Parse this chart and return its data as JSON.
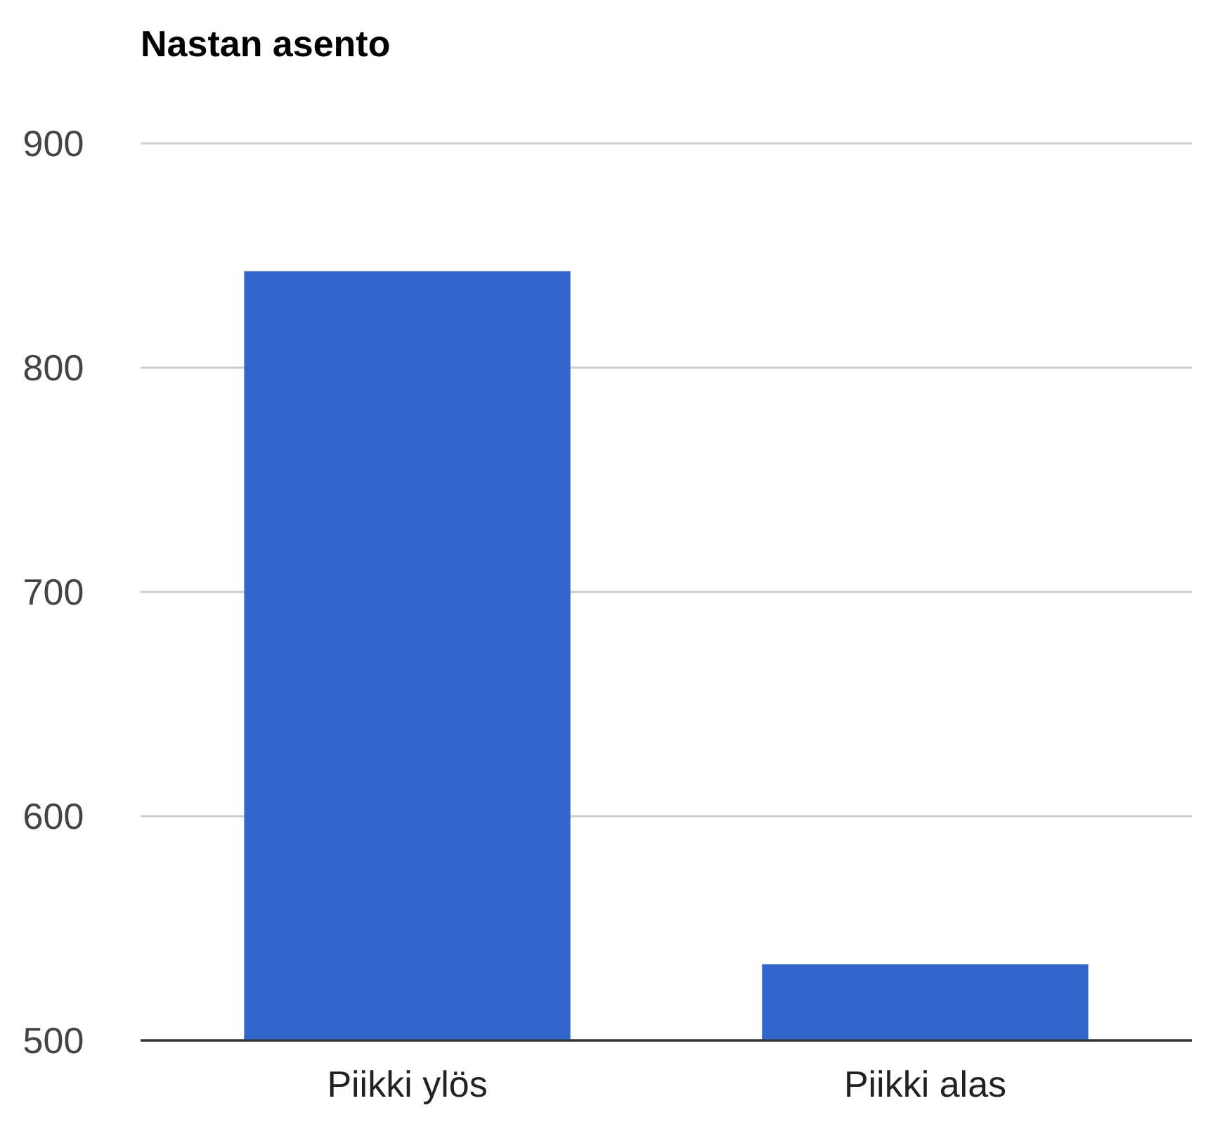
{
  "chart_data": {
    "type": "bar",
    "title": "Nastan asento",
    "categories": [
      "Piikki ylös",
      "Piikki alas"
    ],
    "values": [
      843,
      534
    ],
    "color": "#3366cc",
    "ylim": [
      500,
      900
    ],
    "yticks": [
      500,
      600,
      700,
      800,
      900
    ],
    "grid": true
  }
}
